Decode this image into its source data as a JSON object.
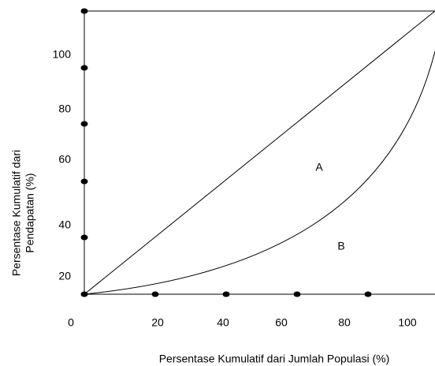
{
  "x_axis": {
    "title": "Persentase Kumulatif dari Jumlah Populasi (%)",
    "tick_labels": [
      "0",
      "20",
      "40",
      "60",
      "80",
      "100"
    ]
  },
  "y_axis": {
    "title": [
      "Persentase Kumulatif dari",
      "Pendapatan (%)"
    ],
    "tick_labels": [
      "100",
      "80",
      "60",
      "40",
      "20"
    ]
  },
  "regions": {
    "a": "A",
    "b": "B"
  }
}
